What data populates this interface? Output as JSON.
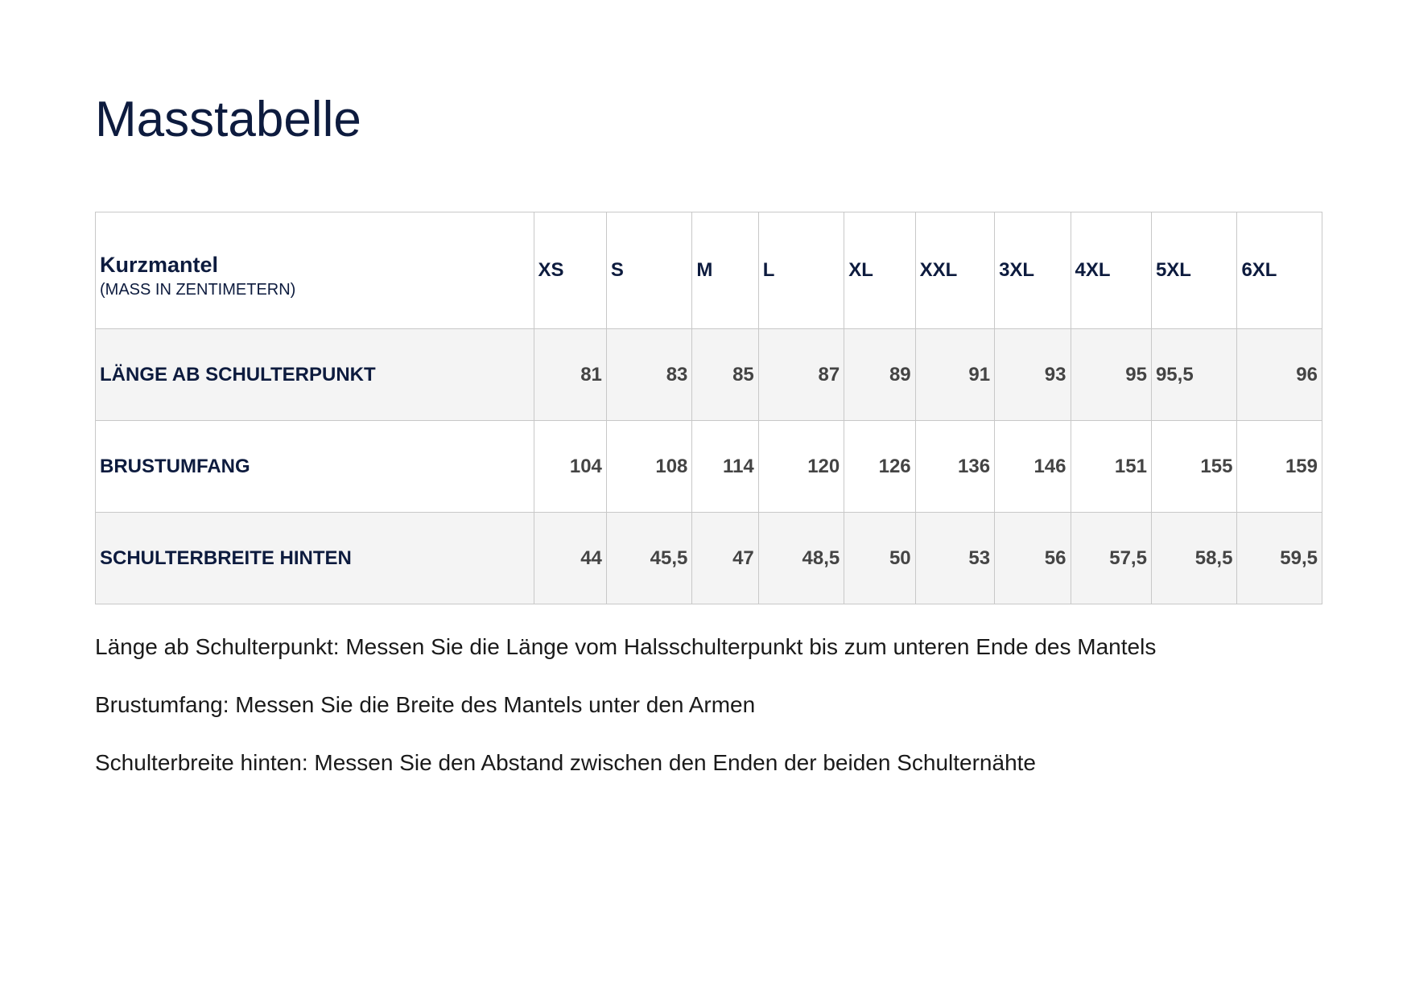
{
  "title": "Masstabelle",
  "table": {
    "header_title": "Kurzmantel",
    "header_subtitle": "(MASS IN ZENTIMETERN)",
    "sizes": [
      "XS",
      "S",
      "M",
      "L",
      "XL",
      "XXL",
      "3XL",
      "4XL",
      "5XL",
      "6XL"
    ],
    "rows": [
      {
        "label": "LÄNGE AB SCHULTERPUNKT",
        "values": [
          "81",
          "83",
          "85",
          "87",
          "89",
          "91",
          "93",
          "95",
          "95,5",
          "96"
        ]
      },
      {
        "label": "BRUSTUMFANG",
        "values": [
          "104",
          "108",
          "114",
          "120",
          "126",
          "136",
          "146",
          "151",
          "155",
          "159"
        ]
      },
      {
        "label": "SCHULTERBREITE HINTEN",
        "values": [
          "44",
          "45,5",
          "47",
          "48,5",
          "50",
          "53",
          "56",
          "57,5",
          "58,5",
          "59,5"
        ]
      }
    ]
  },
  "notes": [
    "Länge ab Schulterpunkt: Messen Sie die Länge vom Halsschulterpunkt bis zum unteren Ende des Mantels",
    "Brustumfang: Messen Sie die Breite des Mantels unter den Armen",
    "Schulterbreite hinten: Messen Sie den Abstand zwischen den Enden der beiden Schulternähte"
  ],
  "colors": {
    "heading": "#0d1b3e",
    "value_text": "#444444",
    "shaded_row": "#f4f4f4",
    "border": "#c8c8c8"
  }
}
